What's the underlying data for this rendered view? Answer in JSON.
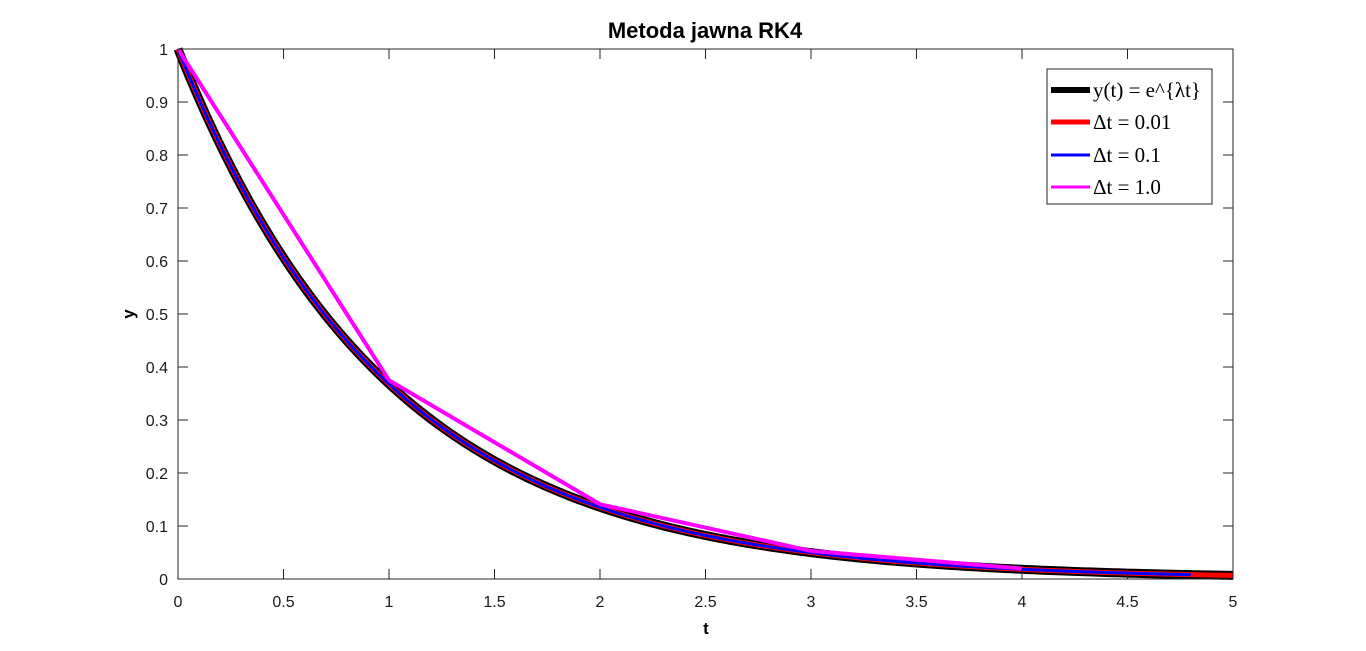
{
  "chart_data": {
    "type": "line",
    "title": "Metoda jawna RK4",
    "xlabel": "t",
    "ylabel": "y",
    "xlim": [
      0,
      5
    ],
    "ylim": [
      0,
      1
    ],
    "x_ticks": [
      "0",
      "0.5",
      "1",
      "1.5",
      "2",
      "2.5",
      "3",
      "3.5",
      "4",
      "4.5",
      "5"
    ],
    "y_ticks": [
      "0",
      "0.1",
      "0.2",
      "0.3",
      "0.4",
      "0.5",
      "0.6",
      "0.7",
      "0.8",
      "0.9",
      "1"
    ],
    "grid": false,
    "legend_position": "top-right",
    "series": [
      {
        "name": "y(t) = e^{λt}",
        "color": "#000000",
        "function": "exp(-t)",
        "x_range": [
          0,
          5
        ]
      },
      {
        "name": "Δt = 0.01",
        "color": "#ff0000",
        "function": "exp(-t)",
        "x_range": [
          0,
          5
        ]
      },
      {
        "name": "Δt = 0.1",
        "color": "#0000ff",
        "function": "exp(-t)",
        "x_range": [
          0,
          4.8
        ]
      },
      {
        "name": "Δt = 1.0",
        "color": "#ff00ff",
        "x": [
          0,
          1,
          2,
          3,
          4
        ],
        "y": [
          1,
          0.375,
          0.141,
          0.053,
          0.0198
        ]
      }
    ]
  }
}
